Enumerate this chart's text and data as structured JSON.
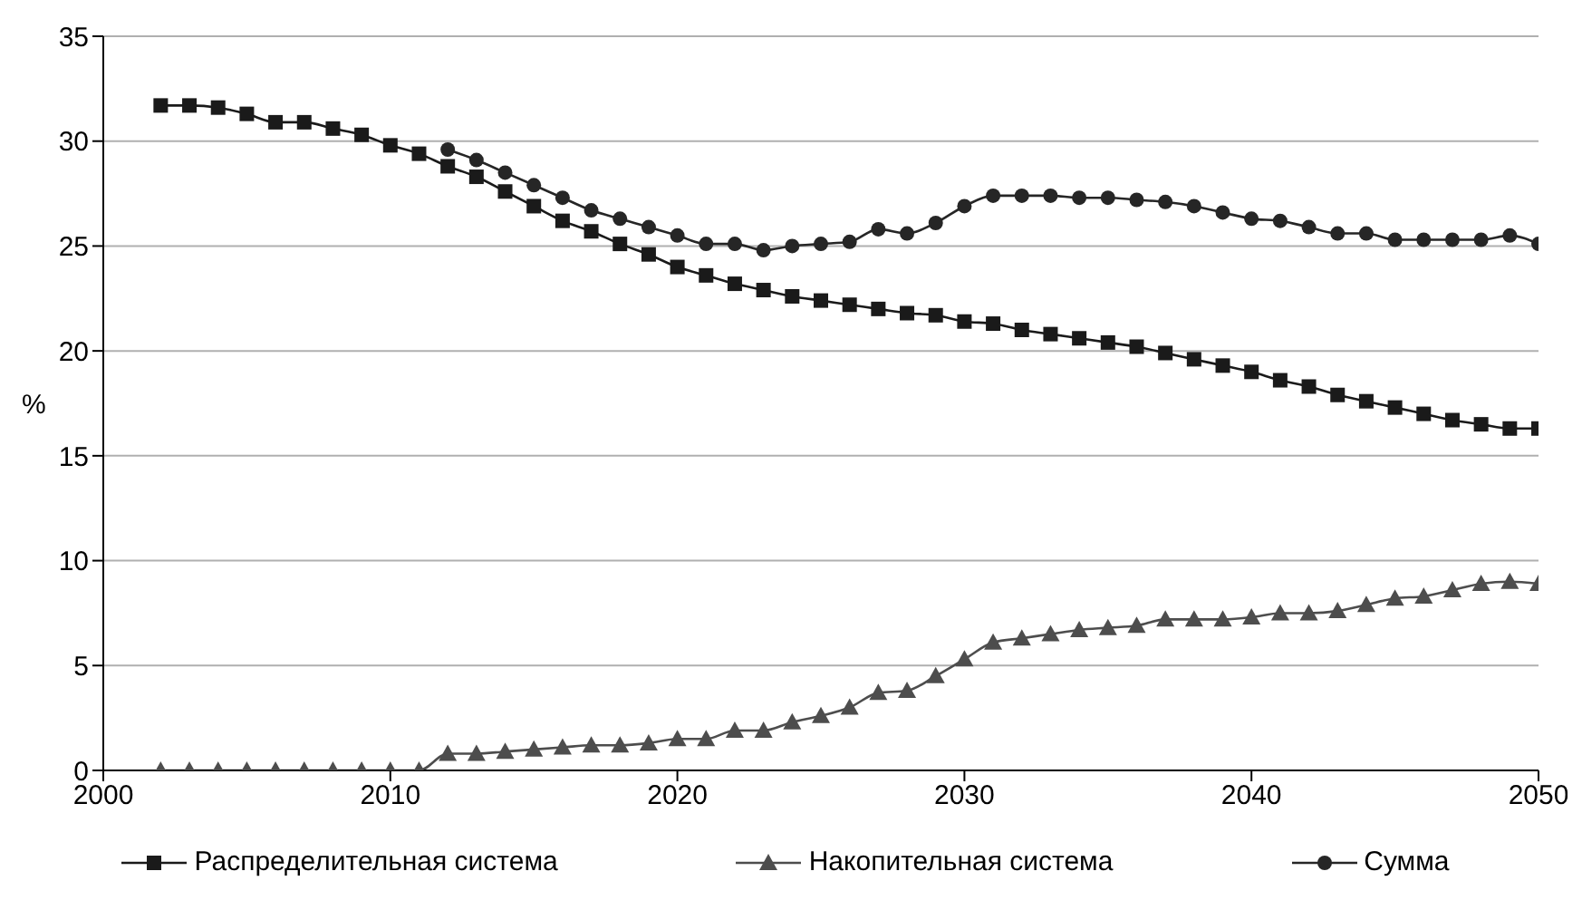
{
  "chart_data": {
    "type": "line",
    "ylabel": "%",
    "x": [
      2002,
      2003,
      2004,
      2005,
      2006,
      2007,
      2008,
      2009,
      2010,
      2011,
      2012,
      2013,
      2014,
      2015,
      2016,
      2017,
      2018,
      2019,
      2020,
      2021,
      2022,
      2023,
      2024,
      2025,
      2026,
      2027,
      2028,
      2029,
      2030,
      2031,
      2032,
      2033,
      2034,
      2035,
      2036,
      2037,
      2038,
      2039,
      2040,
      2041,
      2042,
      2043,
      2044,
      2045,
      2046,
      2047,
      2048,
      2049,
      2050
    ],
    "series": [
      {
        "name": "Распределительная система",
        "color": "#1a1a1a",
        "marker": "square",
        "values": [
          31.7,
          31.7,
          31.6,
          31.3,
          30.9,
          30.9,
          30.6,
          30.3,
          29.8,
          29.4,
          28.8,
          28.3,
          27.6,
          26.9,
          26.2,
          25.7,
          25.1,
          24.6,
          24.0,
          23.6,
          23.2,
          22.9,
          22.6,
          22.4,
          22.2,
          22.0,
          21.8,
          21.7,
          21.4,
          21.3,
          21.0,
          20.8,
          20.6,
          20.4,
          20.2,
          19.9,
          19.6,
          19.3,
          19.0,
          18.6,
          18.3,
          17.9,
          17.6,
          17.3,
          17.0,
          16.7,
          16.5,
          16.3,
          16.3
        ]
      },
      {
        "name": "Накопительная система",
        "color": "#4d4d4d",
        "marker": "triangle",
        "values": [
          0,
          0,
          0,
          0,
          0,
          0,
          0,
          0,
          0,
          0,
          0.8,
          0.8,
          0.9,
          1.0,
          1.1,
          1.2,
          1.2,
          1.3,
          1.5,
          1.5,
          1.9,
          1.9,
          2.3,
          2.6,
          3.0,
          3.7,
          3.8,
          4.5,
          5.3,
          6.1,
          6.3,
          6.5,
          6.7,
          6.8,
          6.9,
          7.2,
          7.2,
          7.2,
          7.3,
          7.5,
          7.5,
          7.6,
          7.9,
          8.2,
          8.3,
          8.6,
          8.9,
          9.0,
          8.9
        ]
      },
      {
        "name": "Сумма",
        "color": "#262626",
        "marker": "circle",
        "values": [
          null,
          null,
          null,
          null,
          null,
          null,
          null,
          null,
          null,
          null,
          29.6,
          29.1,
          28.5,
          27.9,
          27.3,
          26.7,
          26.3,
          25.9,
          25.5,
          25.1,
          25.1,
          24.8,
          25.0,
          25.1,
          25.2,
          25.8,
          25.6,
          26.1,
          26.9,
          27.4,
          27.4,
          27.4,
          27.3,
          27.3,
          27.2,
          27.1,
          26.9,
          26.6,
          26.3,
          26.2,
          25.9,
          25.6,
          25.6,
          25.3,
          25.3,
          25.3,
          25.3,
          25.5,
          25.1
        ]
      }
    ],
    "xlim": [
      2000,
      2050
    ],
    "xticks": [
      2000,
      2010,
      2020,
      2030,
      2040,
      2050
    ],
    "ylim": [
      0,
      35
    ],
    "yticks": [
      0,
      5,
      10,
      15,
      20,
      25,
      30,
      35
    ],
    "grid": "y",
    "legend": "bottom"
  }
}
